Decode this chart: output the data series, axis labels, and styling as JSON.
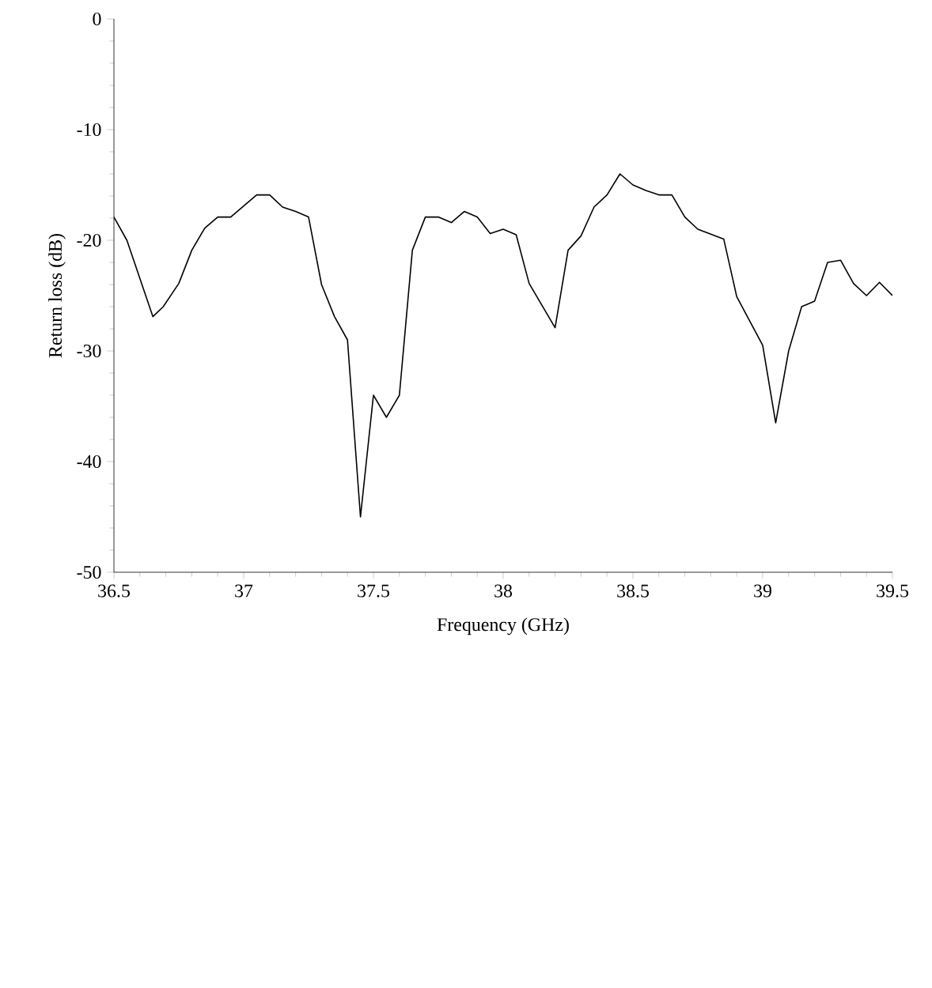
{
  "chart_data": {
    "type": "line",
    "xlabel": "Frequency (GHz)",
    "ylabel": "Return loss (dB)",
    "x": [
      36.5,
      36.55,
      36.65,
      36.69,
      36.75,
      36.8,
      36.85,
      36.9,
      36.95,
      37.0,
      37.05,
      37.1,
      37.15,
      37.2,
      37.25,
      37.3,
      37.35,
      37.4,
      37.45,
      37.5,
      37.55,
      37.6,
      37.65,
      37.7,
      37.75,
      37.8,
      37.85,
      37.9,
      37.95,
      38.0,
      38.05,
      38.1,
      38.15,
      38.2,
      38.25,
      38.3,
      38.35,
      38.4,
      38.45,
      38.5,
      38.55,
      38.6,
      38.65,
      38.7,
      38.75,
      38.85,
      38.9,
      38.95,
      39.0,
      39.05,
      39.1,
      39.15,
      39.2,
      39.25,
      39.3,
      39.35,
      39.4,
      39.45,
      39.5
    ],
    "values": [
      -17.9,
      -20,
      -26.9,
      -26,
      -23.9,
      -20.9,
      -18.9,
      -17.9,
      -17.9,
      -16.9,
      -15.9,
      -15.9,
      -17,
      -17.4,
      -17.9,
      -24,
      -26.9,
      -29,
      -45,
      -34,
      -36,
      -34,
      -20.9,
      -17.9,
      -17.9,
      -18.4,
      -17.4,
      -17.9,
      -19.4,
      -19,
      -19.5,
      -23.9,
      -25.9,
      -27.9,
      -20.9,
      -19.6,
      -17,
      -15.9,
      -14,
      -15,
      -15.5,
      -15.9,
      -15.9,
      -17.9,
      -19,
      -19.9,
      -25.1,
      -27.3,
      -29.5,
      -36.5,
      -30,
      -26,
      -25.5,
      -22,
      -21.8,
      -23.9,
      -25,
      -23.8,
      -25
    ],
    "color": "#000000",
    "xlim": [
      36.5,
      39.5
    ],
    "xticks": [
      36.5,
      37,
      37.5,
      38,
      38.5,
      39,
      39.5
    ],
    "ylim": [
      -50,
      0
    ],
    "yticks": [
      -50,
      -40,
      -30,
      -20,
      -10,
      0
    ]
  }
}
